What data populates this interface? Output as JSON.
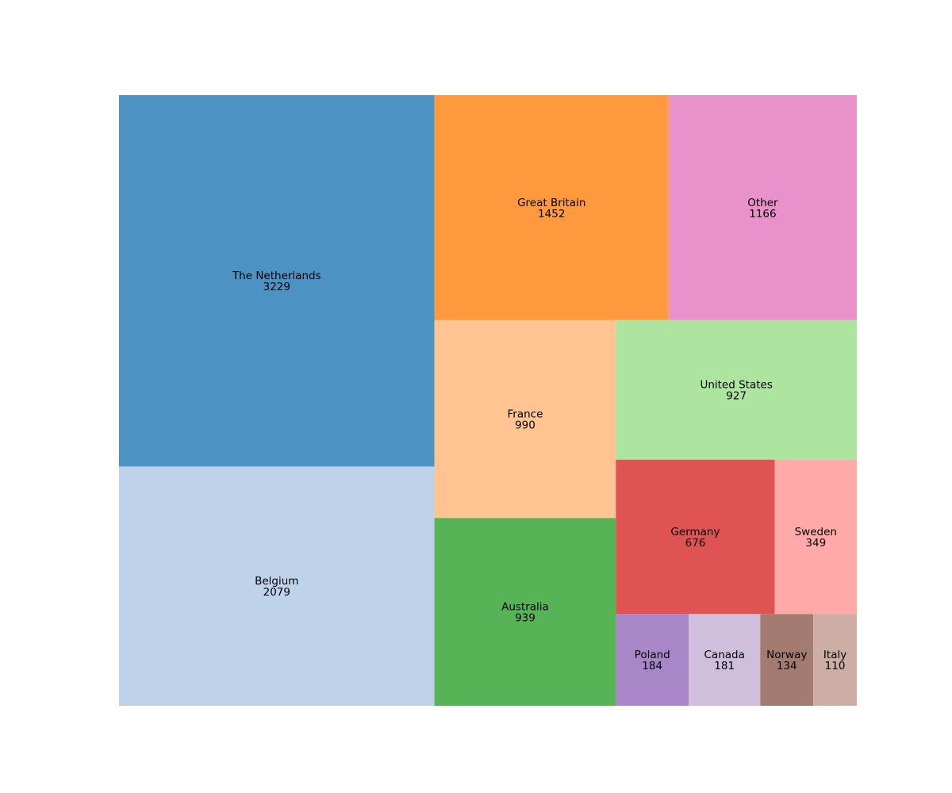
{
  "chart_data": {
    "type": "treemap",
    "title": "",
    "categories": [
      "The Netherlands",
      "Belgium",
      "Great Britain",
      "Other",
      "France",
      "Australia",
      "United States",
      "Germany",
      "Sweden",
      "Poland",
      "Canada",
      "Norway",
      "Italy"
    ],
    "values": [
      3229,
      2079,
      1452,
      1166,
      990,
      939,
      927,
      676,
      349,
      184,
      181,
      134,
      110
    ],
    "colors": [
      "#4c92c3",
      "#bed2ea",
      "#ff993e",
      "#e891ca",
      "#ffc491",
      "#56b356",
      "#ade5a0",
      "#df5353",
      "#ffaaa8",
      "#a886c8",
      "#d0bedd",
      "#a47b70",
      "#ccaea5"
    ],
    "grid": false,
    "legend": "none"
  }
}
